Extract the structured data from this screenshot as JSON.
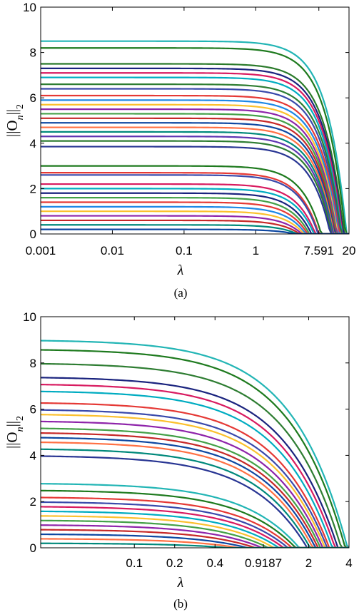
{
  "chart_data": [
    {
      "type": "line",
      "caption": "(a)",
      "xlabel": "λ",
      "ylabel_base": "||O",
      "ylabel_sub_mid": "n",
      "ylabel_bar": "||",
      "ylabel_sub_end": "2",
      "x_scale": "log",
      "xlim": [
        0.001,
        20
      ],
      "ylim": [
        0,
        10
      ],
      "xticks": [
        {
          "value": 0.001,
          "label": "0.001"
        },
        {
          "value": 0.01,
          "label": "0.01"
        },
        {
          "value": 0.1,
          "label": "0.1"
        },
        {
          "value": 1,
          "label": "1"
        },
        {
          "value": 7.591,
          "label": "7.591"
        },
        {
          "value": 20,
          "label": "20"
        }
      ],
      "yticks": [
        {
          "value": 0,
          "label": "0"
        },
        {
          "value": 2,
          "label": "2"
        },
        {
          "value": 4,
          "label": "4"
        },
        {
          "value": 6,
          "label": "6"
        },
        {
          "value": 8,
          "label": "8"
        },
        {
          "value": 10,
          "label": "10"
        }
      ],
      "series": [
        {
          "start": 8.5,
          "end": 18.5,
          "color": "#22b5b5"
        },
        {
          "start": 8.2,
          "end": 17.8,
          "color": "#1e7a1e"
        },
        {
          "start": 7.5,
          "end": 17.0,
          "color": "#2a7a2a"
        },
        {
          "start": 7.3,
          "end": 16.5,
          "color": "#1a237e"
        },
        {
          "start": 7.1,
          "end": 16.2,
          "color": "#d81b60"
        },
        {
          "start": 6.9,
          "end": 15.8,
          "color": "#00acc1"
        },
        {
          "start": 6.6,
          "end": 15.5,
          "color": "#2e7d32"
        },
        {
          "start": 6.4,
          "end": 15.0,
          "color": "#3949ab"
        },
        {
          "start": 6.1,
          "end": 14.6,
          "color": "#e53935"
        },
        {
          "start": 5.9,
          "end": 14.2,
          "color": "#1e88e5"
        },
        {
          "start": 5.7,
          "end": 13.8,
          "color": "#fbc02d"
        },
        {
          "start": 5.5,
          "end": 13.5,
          "color": "#8e24aa"
        },
        {
          "start": 5.3,
          "end": 13.2,
          "color": "#43a047"
        },
        {
          "start": 5.1,
          "end": 12.9,
          "color": "#c62828"
        },
        {
          "start": 4.9,
          "end": 12.6,
          "color": "#0d47a1"
        },
        {
          "start": 4.7,
          "end": 12.3,
          "color": "#ff7043"
        },
        {
          "start": 4.5,
          "end": 12.0,
          "color": "#00897b"
        },
        {
          "start": 4.3,
          "end": 11.7,
          "color": "#5e35b1"
        },
        {
          "start": 4.1,
          "end": 11.4,
          "color": "#2e7d32"
        },
        {
          "start": 3.85,
          "end": 11.0,
          "color": "#283593"
        },
        {
          "start": 3.0,
          "end": 8.2,
          "color": "#1e7a1e"
        },
        {
          "start": 2.7,
          "end": 7.6,
          "color": "#e53935"
        },
        {
          "start": 2.6,
          "end": 7.4,
          "color": "#3949ab"
        },
        {
          "start": 2.2,
          "end": 6.8,
          "color": "#d81b60"
        },
        {
          "start": 2.0,
          "end": 6.5,
          "color": "#00acc1"
        },
        {
          "start": 1.8,
          "end": 6.0,
          "color": "#1a237e"
        },
        {
          "start": 1.6,
          "end": 5.6,
          "color": "#43a047"
        },
        {
          "start": 1.4,
          "end": 5.3,
          "color": "#e53935"
        },
        {
          "start": 1.2,
          "end": 5.0,
          "color": "#1e88e5"
        },
        {
          "start": 1.0,
          "end": 4.7,
          "color": "#fbc02d"
        },
        {
          "start": 0.8,
          "end": 4.4,
          "color": "#8e24aa"
        },
        {
          "start": 0.6,
          "end": 4.1,
          "color": "#c62828"
        },
        {
          "start": 0.4,
          "end": 3.8,
          "color": "#00897b"
        },
        {
          "start": 0.2,
          "end": 3.5,
          "color": "#0d47a1"
        }
      ]
    },
    {
      "type": "line",
      "caption": "(b)",
      "xlabel": "λ",
      "ylabel_base": "||O",
      "ylabel_sub_mid": "n",
      "ylabel_bar": "||",
      "ylabel_sub_end": "2",
      "x_scale": "log",
      "xlim": [
        0.02,
        4
      ],
      "ylim": [
        0,
        10
      ],
      "xticks": [
        {
          "value": 0.1,
          "label": "0.1"
        },
        {
          "value": 0.2,
          "label": "0.2"
        },
        {
          "value": 0.4,
          "label": "0.4"
        },
        {
          "value": 0.9187,
          "label": "0.9187"
        },
        {
          "value": 2,
          "label": "2"
        },
        {
          "value": 4,
          "label": "4"
        }
      ],
      "yticks": [
        {
          "value": 0,
          "label": "0"
        },
        {
          "value": 2,
          "label": "2"
        },
        {
          "value": 4,
          "label": "4"
        },
        {
          "value": 6,
          "label": "6"
        },
        {
          "value": 8,
          "label": "8"
        },
        {
          "value": 10,
          "label": "10"
        }
      ],
      "series": [
        {
          "start": 9.0,
          "end": 3.9,
          "color": "#22b5b5"
        },
        {
          "start": 8.6,
          "end": 3.75,
          "color": "#1e7a1e"
        },
        {
          "start": 8.0,
          "end": 3.5,
          "color": "#2e7d32"
        },
        {
          "start": 7.4,
          "end": 3.3,
          "color": "#1a237e"
        },
        {
          "start": 7.1,
          "end": 3.15,
          "color": "#d81b60"
        },
        {
          "start": 6.8,
          "end": 3.0,
          "color": "#00acc1"
        },
        {
          "start": 6.3,
          "end": 2.85,
          "color": "#e53935"
        },
        {
          "start": 6.0,
          "end": 2.75,
          "color": "#3949ab"
        },
        {
          "start": 5.8,
          "end": 2.65,
          "color": "#fbc02d"
        },
        {
          "start": 5.5,
          "end": 2.55,
          "color": "#8e24aa"
        },
        {
          "start": 5.2,
          "end": 2.45,
          "color": "#43a047"
        },
        {
          "start": 5.0,
          "end": 2.35,
          "color": "#c62828"
        },
        {
          "start": 4.8,
          "end": 2.25,
          "color": "#0d47a1"
        },
        {
          "start": 4.6,
          "end": 2.15,
          "color": "#ff7043"
        },
        {
          "start": 4.3,
          "end": 2.05,
          "color": "#00897b"
        },
        {
          "start": 4.0,
          "end": 1.95,
          "color": "#283593"
        },
        {
          "start": 2.8,
          "end": 1.7,
          "color": "#22b5b5"
        },
        {
          "start": 2.5,
          "end": 1.6,
          "color": "#1e7a1e"
        },
        {
          "start": 2.2,
          "end": 1.5,
          "color": "#e53935"
        },
        {
          "start": 2.0,
          "end": 1.4,
          "color": "#3949ab"
        },
        {
          "start": 1.8,
          "end": 1.3,
          "color": "#d81b60"
        },
        {
          "start": 1.6,
          "end": 1.2,
          "color": "#00acc1"
        },
        {
          "start": 1.4,
          "end": 1.1,
          "color": "#fbc02d"
        },
        {
          "start": 1.2,
          "end": 1.0,
          "color": "#43a047"
        },
        {
          "start": 1.0,
          "end": 0.9,
          "color": "#8e24aa"
        },
        {
          "start": 0.8,
          "end": 0.8,
          "color": "#c62828"
        },
        {
          "start": 0.6,
          "end": 0.7,
          "color": "#0d47a1"
        },
        {
          "start": 0.4,
          "end": 0.6,
          "color": "#ff7043"
        },
        {
          "start": 0.2,
          "end": 0.5,
          "color": "#00897b"
        }
      ]
    }
  ]
}
